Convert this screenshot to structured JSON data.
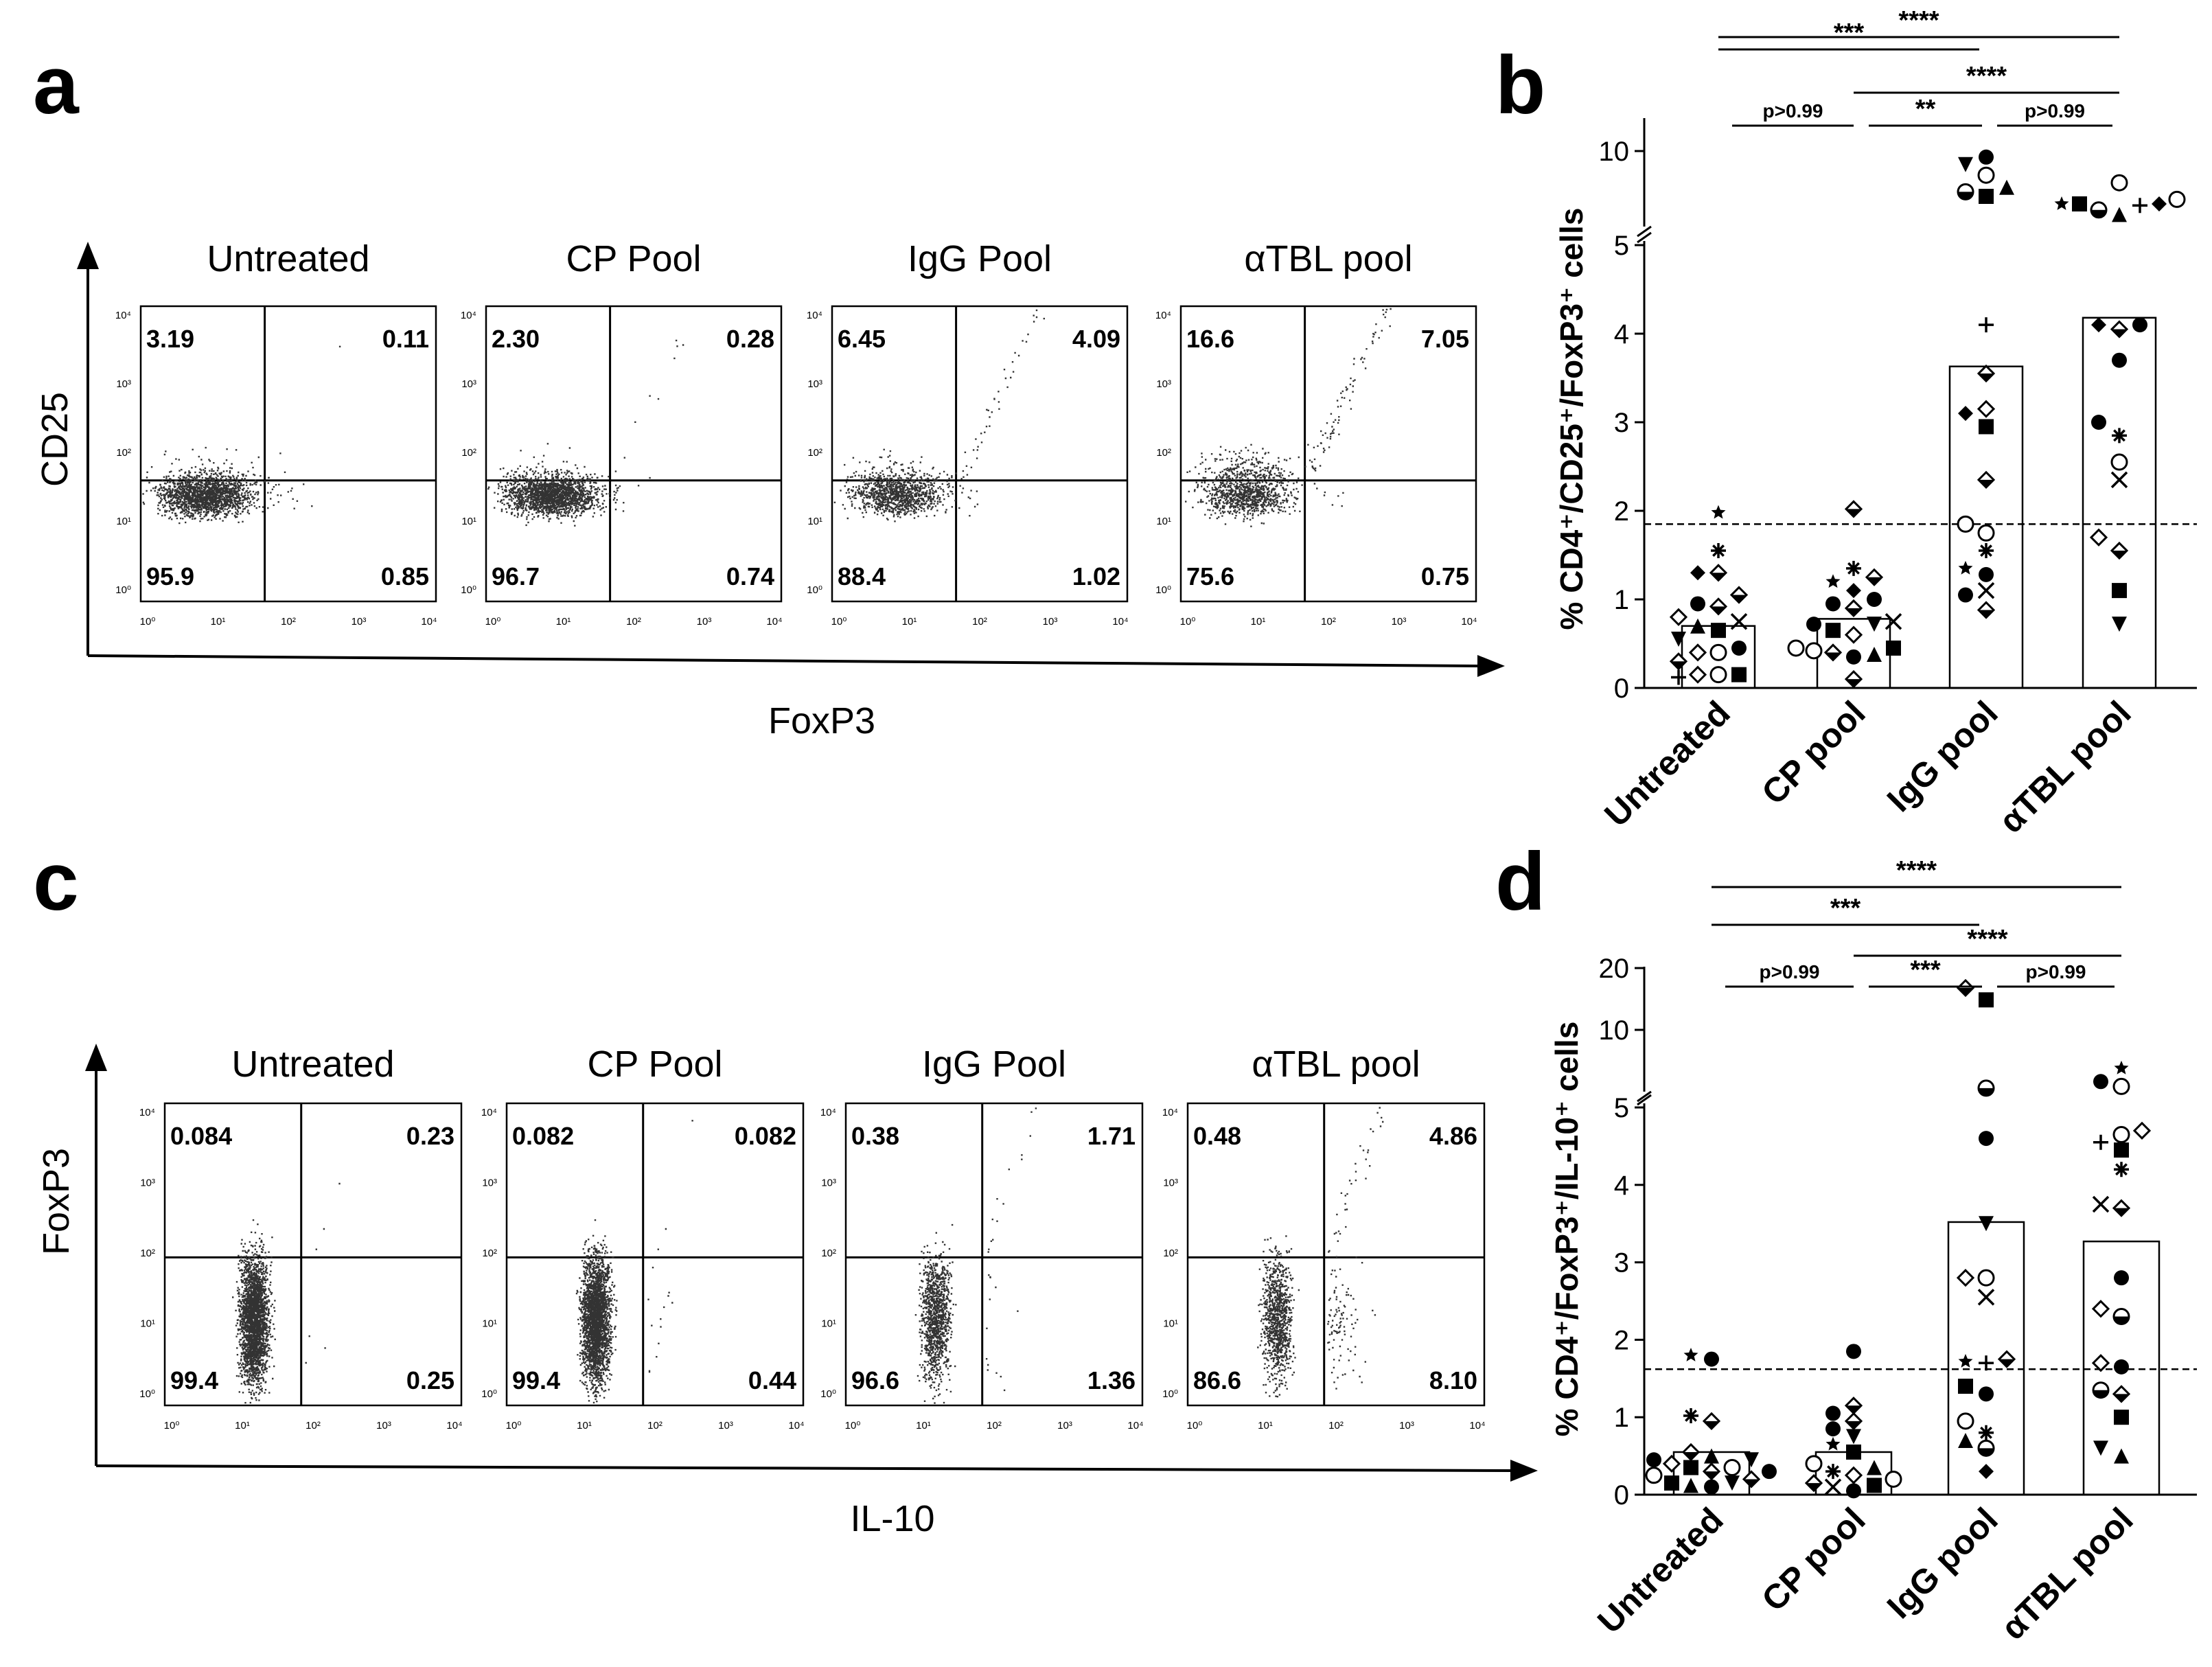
{
  "chart_data": [
    {
      "type": "scatter",
      "panel_letter": "a",
      "kind": "flow_cytometry",
      "xlabel": "FoxP3",
      "ylabel": "CD25",
      "tick_labels": [
        "10⁰",
        "10¹",
        "10²",
        "10³",
        "10⁴"
      ],
      "plots": [
        {
          "title": "Untreated",
          "quadrants": {
            "ul": "3.19",
            "ur": "0.11",
            "ll": "95.9",
            "lr": "0.85"
          }
        },
        {
          "title": "CP Pool",
          "quadrants": {
            "ul": "2.30",
            "ur": "0.28",
            "ll": "96.7",
            "lr": "0.74"
          }
        },
        {
          "title": "IgG Pool",
          "quadrants": {
            "ul": "6.45",
            "ur": "4.09",
            "ll": "88.4",
            "lr": "1.02"
          }
        },
        {
          "title": "αTBL pool",
          "quadrants": {
            "ul": "16.6",
            "ur": "7.05",
            "ll": "75.6",
            "lr": "0.75"
          }
        }
      ]
    },
    {
      "type": "scatter",
      "panel_letter": "b",
      "kind": "dot_bar",
      "ylabel": "% CD4⁺/CD25⁺/FoxP3⁺ cells",
      "categories": [
        "Untreated",
        "CP pool",
        "IgG pool",
        "αTBL pool"
      ],
      "bar_means": [
        0.7,
        0.78,
        3.63,
        4.18
      ],
      "threshold": 1.85,
      "yticks_low": [
        0,
        1,
        2,
        3,
        4,
        5
      ],
      "yticks_high": [
        10
      ],
      "axis_break_at": 5,
      "ylim": [
        0,
        10.5
      ],
      "points": [
        [
          [
            0.15,
            "o"
          ],
          [
            0.15,
            "d"
          ],
          [
            0.15,
            "s"
          ],
          [
            0.12,
            "+"
          ],
          [
            0.3,
            "dh"
          ],
          [
            0.4,
            "o"
          ],
          [
            0.4,
            "d"
          ],
          [
            0.45,
            "c"
          ],
          [
            0.55,
            "v"
          ],
          [
            0.65,
            "s"
          ],
          [
            0.7,
            "^"
          ],
          [
            0.75,
            "x"
          ],
          [
            0.8,
            "d"
          ],
          [
            0.92,
            "dh"
          ],
          [
            0.95,
            "c"
          ],
          [
            1.05,
            "dh"
          ],
          [
            1.3,
            "dh"
          ],
          [
            1.3,
            "D"
          ],
          [
            1.55,
            "*"
          ],
          [
            1.98,
            "k"
          ]
        ],
        [
          [
            0.1,
            "dh"
          ],
          [
            0.35,
            "c"
          ],
          [
            0.4,
            "dh"
          ],
          [
            0.38,
            "^"
          ],
          [
            0.42,
            "o"
          ],
          [
            0.45,
            "s"
          ],
          [
            0.45,
            "o"
          ],
          [
            0.6,
            "d"
          ],
          [
            0.65,
            "s"
          ],
          [
            0.72,
            "v"
          ],
          [
            0.72,
            "c"
          ],
          [
            0.75,
            "x"
          ],
          [
            0.9,
            "dh"
          ],
          [
            0.95,
            "c"
          ],
          [
            1.0,
            "c"
          ],
          [
            1.1,
            "D"
          ],
          [
            1.2,
            "k"
          ],
          [
            1.25,
            "dh"
          ],
          [
            1.35,
            "*"
          ],
          [
            2.02,
            "dh"
          ]
        ],
        [
          [
            0.88,
            "dh"
          ],
          [
            1.05,
            "c"
          ],
          [
            1.1,
            "x"
          ],
          [
            1.28,
            "c"
          ],
          [
            1.35,
            "k"
          ],
          [
            1.55,
            "*"
          ],
          [
            1.75,
            "o"
          ],
          [
            1.85,
            "o"
          ],
          [
            2.35,
            "dh"
          ],
          [
            2.95,
            "s"
          ],
          [
            3.1,
            "D"
          ],
          [
            3.15,
            "d"
          ],
          [
            3.55,
            "dh"
          ],
          [
            4.1,
            "+"
          ],
          [
            7.0,
            "s"
          ],
          [
            7.3,
            "ch"
          ],
          [
            7.6,
            "^"
          ],
          [
            8.4,
            "o"
          ],
          [
            9.1,
            "v"
          ],
          [
            9.6,
            "c"
          ]
        ],
        [
          [
            0.72,
            "v"
          ],
          [
            1.1,
            "s"
          ],
          [
            1.55,
            "dh"
          ],
          [
            1.7,
            "d"
          ],
          [
            2.35,
            "x"
          ],
          [
            2.55,
            "o"
          ],
          [
            2.85,
            "*"
          ],
          [
            3.0,
            "c"
          ],
          [
            3.7,
            "c"
          ],
          [
            4.05,
            "dh"
          ],
          [
            4.1,
            "D"
          ],
          [
            4.1,
            "c"
          ],
          [
            5.8,
            "^"
          ],
          [
            6.1,
            "ch"
          ],
          [
            6.4,
            "+"
          ],
          [
            6.5,
            "s"
          ],
          [
            6.5,
            "D"
          ],
          [
            6.5,
            "k"
          ],
          [
            6.8,
            "o"
          ],
          [
            7.9,
            "o"
          ]
        ]
      ],
      "significance": [
        {
          "from": 0,
          "to": 3,
          "label": "****"
        },
        {
          "from": 0,
          "to": 2,
          "label": "***"
        },
        {
          "from": 1,
          "to": 3,
          "label": "****"
        },
        {
          "from": 0,
          "to": 1,
          "label": "p>0.99"
        },
        {
          "from": 1,
          "to": 2,
          "label": "**"
        },
        {
          "from": 2,
          "to": 3,
          "label": "p>0.99"
        }
      ]
    },
    {
      "type": "scatter",
      "panel_letter": "c",
      "kind": "flow_cytometry",
      "xlabel": "IL-10",
      "ylabel": "FoxP3",
      "tick_labels": [
        "10⁰",
        "10¹",
        "10²",
        "10³",
        "10⁴"
      ],
      "plots": [
        {
          "title": "Untreated",
          "quadrants": {
            "ul": "0.084",
            "ur": "0.23",
            "ll": "99.4",
            "lr": "0.25"
          }
        },
        {
          "title": "CP Pool",
          "quadrants": {
            "ul": "0.082",
            "ur": "0.082",
            "ll": "99.4",
            "lr": "0.44"
          }
        },
        {
          "title": "IgG Pool",
          "quadrants": {
            "ul": "0.38",
            "ur": "1.71",
            "ll": "96.6",
            "lr": "1.36"
          }
        },
        {
          "title": "αTBL pool",
          "quadrants": {
            "ul": "0.48",
            "ur": "4.86",
            "ll": "86.6",
            "lr": "8.10"
          }
        }
      ]
    },
    {
      "type": "scatter",
      "panel_letter": "d",
      "kind": "dot_bar",
      "ylabel": "% CD4⁺/FoxP3⁺/IL-10⁺ cells",
      "categories": [
        "Untreated",
        "CP pool",
        "IgG pool",
        "αTBL pool"
      ],
      "bar_means": [
        0.55,
        0.55,
        3.52,
        3.27
      ],
      "threshold": 1.62,
      "yticks_low": [
        0,
        1,
        2,
        3,
        4,
        5
      ],
      "yticks_high": [
        10,
        20
      ],
      "axis_break_at": 5,
      "ylim": [
        0,
        20
      ],
      "points": [
        [
          [
            0.1,
            "c"
          ],
          [
            0.12,
            "^"
          ],
          [
            0.15,
            "v"
          ],
          [
            0.15,
            "s"
          ],
          [
            0.2,
            "dh"
          ],
          [
            0.25,
            "o"
          ],
          [
            0.3,
            "dh"
          ],
          [
            0.3,
            "c"
          ],
          [
            0.35,
            "s"
          ],
          [
            0.35,
            "o"
          ],
          [
            0.4,
            "d"
          ],
          [
            0.45,
            "v"
          ],
          [
            0.45,
            "c"
          ],
          [
            0.5,
            "^"
          ],
          [
            0.55,
            "dh"
          ],
          [
            0.95,
            "dh"
          ],
          [
            1.02,
            "*"
          ],
          [
            1.75,
            "c"
          ],
          [
            1.8,
            "k"
          ]
        ],
        [
          [
            0.05,
            "c"
          ],
          [
            0.1,
            "x"
          ],
          [
            0.12,
            "s"
          ],
          [
            0.15,
            "dh"
          ],
          [
            0.2,
            "o"
          ],
          [
            0.25,
            "d"
          ],
          [
            0.3,
            "*"
          ],
          [
            0.35,
            "^"
          ],
          [
            0.4,
            "o"
          ],
          [
            0.55,
            "s"
          ],
          [
            0.65,
            "k"
          ],
          [
            0.75,
            "v"
          ],
          [
            0.85,
            "c"
          ],
          [
            0.95,
            "dh"
          ],
          [
            1.05,
            "c"
          ],
          [
            1.15,
            "dh"
          ],
          [
            1.85,
            "c"
          ]
        ],
        [
          [
            0.3,
            "D"
          ],
          [
            0.6,
            "ch"
          ],
          [
            0.7,
            "^"
          ],
          [
            0.8,
            "*"
          ],
          [
            0.95,
            "o"
          ],
          [
            1.3,
            "c"
          ],
          [
            1.4,
            "s"
          ],
          [
            1.7,
            "+"
          ],
          [
            1.72,
            "k"
          ],
          [
            1.75,
            "dh"
          ],
          [
            2.55,
            "x"
          ],
          [
            2.8,
            "o"
          ],
          [
            2.8,
            "d"
          ],
          [
            3.5,
            "v"
          ],
          [
            4.6,
            "c"
          ],
          [
            5.2,
            "ch"
          ],
          [
            14,
            "s"
          ],
          [
            16,
            "dh"
          ]
        ],
        [
          [
            0.5,
            "^"
          ],
          [
            0.6,
            "v"
          ],
          [
            1.0,
            "s"
          ],
          [
            1.3,
            "dh"
          ],
          [
            1.35,
            "ch"
          ],
          [
            1.65,
            "c"
          ],
          [
            1.7,
            "d"
          ],
          [
            2.3,
            "ch"
          ],
          [
            2.4,
            "d"
          ],
          [
            2.8,
            "c"
          ],
          [
            3.7,
            "dh"
          ],
          [
            3.75,
            "x"
          ],
          [
            4.2,
            "*"
          ],
          [
            4.45,
            "s"
          ],
          [
            4.55,
            "+"
          ],
          [
            4.65,
            "o"
          ],
          [
            4.7,
            "d"
          ],
          [
            5.3,
            "o"
          ],
          [
            5.6,
            "c"
          ],
          [
            6.5,
            "k"
          ]
        ]
      ],
      "significance": [
        {
          "from": 0,
          "to": 3,
          "label": "****"
        },
        {
          "from": 0,
          "to": 2,
          "label": "***"
        },
        {
          "from": 1,
          "to": 3,
          "label": "****"
        },
        {
          "from": 0,
          "to": 1,
          "label": "p>0.99"
        },
        {
          "from": 1,
          "to": 2,
          "label": "***"
        },
        {
          "from": 2,
          "to": 3,
          "label": "p>0.99"
        }
      ]
    }
  ]
}
